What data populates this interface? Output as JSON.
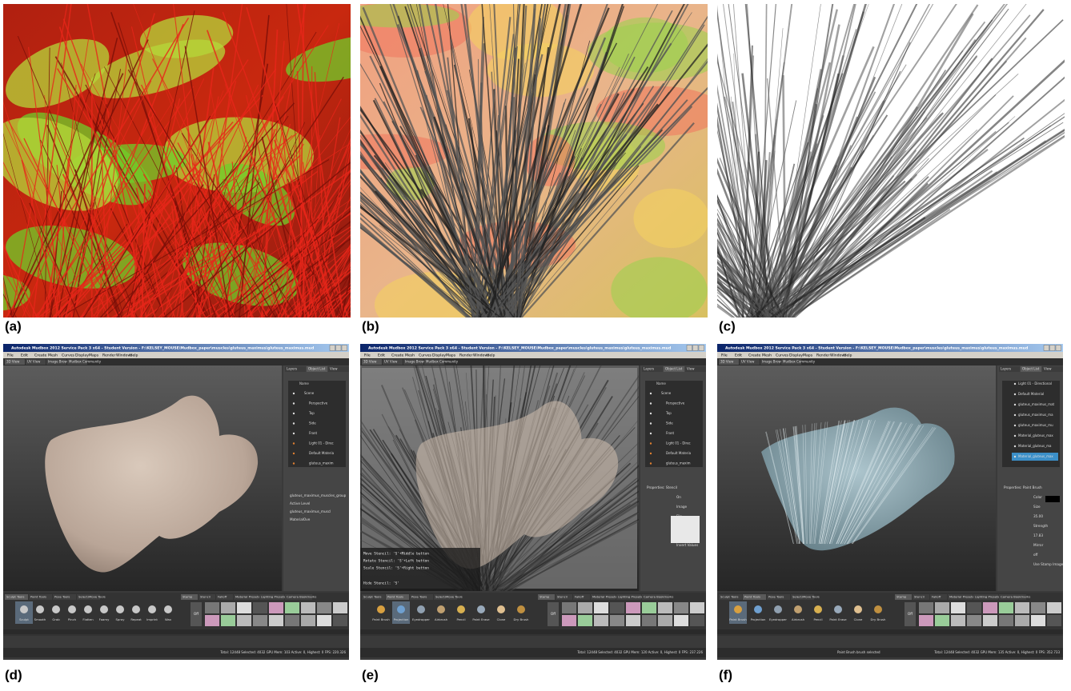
{
  "panels": {
    "labels": [
      "(a)",
      "(b)",
      "(c)",
      "(d)",
      "(e)",
      "(f)"
    ]
  },
  "mudbox": {
    "title": "Autodesk Mudbox 2012 Service Pack 3 x64 - Student Version - F:\\KELSEY_MOUSE\\Mudbox_paper\\muscles\\gluteus_maximus\\gluteus_maximus.mud",
    "menu": [
      "File",
      "Edit",
      "Create",
      "Mesh",
      "Curves",
      "Display",
      "Maps",
      "Render",
      "Windows",
      "Help"
    ],
    "view_tabs": [
      "3D View",
      "UV View",
      "Image Browser",
      "Mudbox Community"
    ],
    "side_tabs": [
      "Layers",
      "Object List",
      "View"
    ],
    "list_header": "Name",
    "tool_tabs": [
      "Sculpt Tools",
      "Paint Tools",
      "Pose Tools",
      "Select/Move Tools"
    ],
    "tray_tabs": [
      "Stamp",
      "Stencil",
      "Falloff",
      "Material Presets",
      "Lighting Presets",
      "Camera Bookmarks"
    ],
    "tray_off": "Off"
  },
  "screens": [
    {
      "active_tab": 0,
      "active_tool": 0,
      "tools": [
        "Sculpt",
        "Smooth",
        "Grab",
        "Pinch",
        "Flatten",
        "Foamy",
        "Spray",
        "Repeat",
        "Imprint",
        "Wax"
      ],
      "objects": [
        "Scene",
        "Perspective",
        "Top",
        "Side",
        "Front",
        "Light 01 - Direc",
        "Default Materia",
        "gluteus_maxim"
      ],
      "props": [
        "gluteus_maximus_muscles_group",
        "Active Level",
        "gluteus_maximus_muscl",
        "MaterialOve"
      ],
      "status": "Total: 12448 Selected: 4032 GPU Mem: 103 Active: 0, Highest: 0 FPS: 220.326"
    },
    {
      "active_tab": 1,
      "active_tool": 1,
      "tools": [
        "Paint Brush",
        "Projection",
        "Eyedropper",
        "Airbrush",
        "Pencil",
        "Paint Erase",
        "Clone",
        "Dry Brush"
      ],
      "objects": [
        "Scene",
        "Perspective",
        "Top",
        "Side",
        "Front",
        "Light 01 - Direc",
        "Default Materia",
        "gluteus_maxim"
      ],
      "props": [
        "Properties: Stencil",
        "On",
        "Image",
        "File",
        "Invert",
        "Export",
        "Invert Values"
      ],
      "stencil_help": [
        "Move Stencil: 'S'+Middle button",
        "Rotate Stencil: 'S'+Left button",
        "Scale Stencil: 'S'+Right button",
        "Hide Stencil: 'S'"
      ],
      "status": "Total: 12448 Selected: 4032 GPU Mem: 120 Active: 0, Highest: 0 FPS: 237.226"
    },
    {
      "active_tab": 1,
      "active_tool": 0,
      "tools": [
        "Paint Brush",
        "Projection",
        "Eyedropper",
        "Airbrush",
        "Pencil",
        "Paint Erase",
        "Clone",
        "Dry Brush"
      ],
      "objects": [
        "Light 01 - Directional",
        "Default Material",
        "gluteus_maximus_mat",
        "gluteus_maximus_ma",
        "gluteus_maximus_mu",
        "Material_gluteus_max",
        "Material_gluteus_ma",
        "Material_gluteus_max"
      ],
      "props": [
        "Properties: Paint Brush",
        "Color",
        "Size",
        "35.00",
        "Strength",
        "17.83",
        "Mirror",
        "off",
        "Use Stamp Image"
      ],
      "status": "Total: 12448 Selected: 4032 GPU Mem: 135 Active: 0, Highest: 0 FPS: 352.733",
      "message": "Paint Brush brush selected"
    }
  ]
}
